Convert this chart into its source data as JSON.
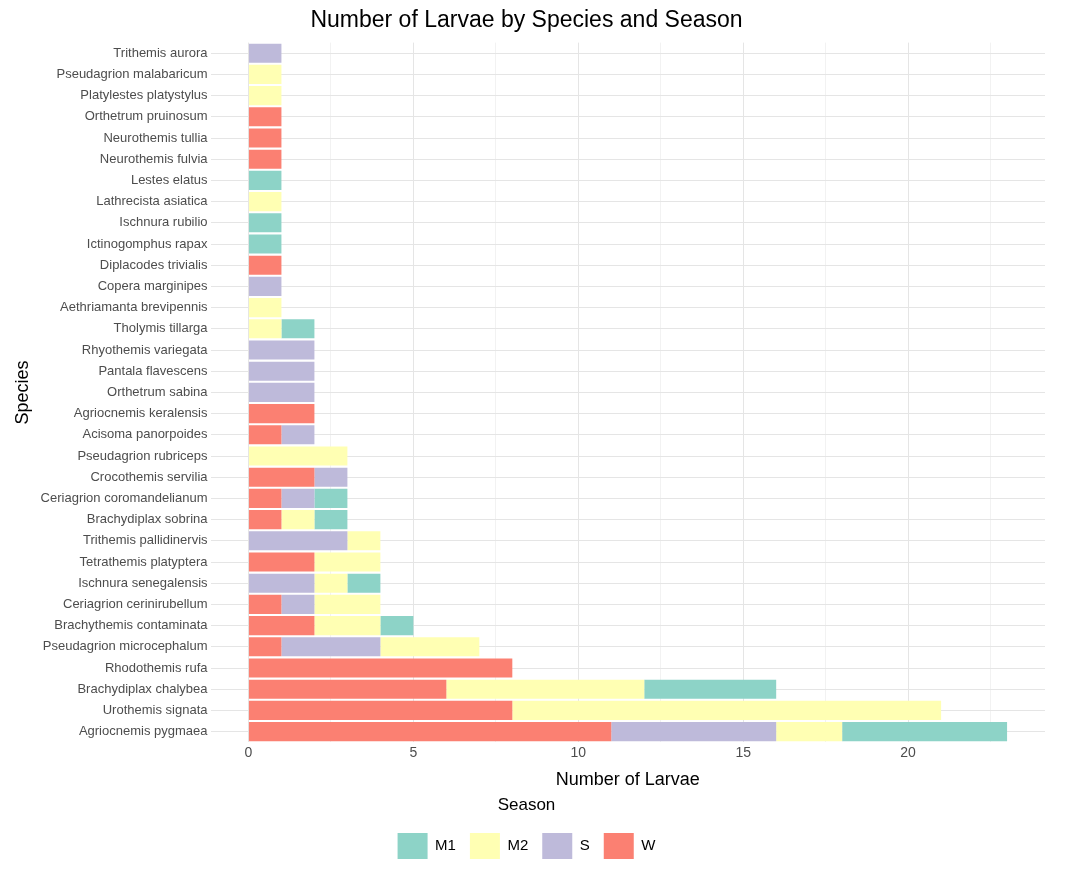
{
  "chart_data": {
    "type": "bar",
    "title": "Number of Larvae by Species and Season",
    "xlabel": "Number of Larvae",
    "ylabel": "Species",
    "legend_title": "Season",
    "orientation": "horizontal",
    "stacked": true,
    "grid": true,
    "legend": "bottom",
    "categories": [
      "Trithemis aurora",
      "Pseudagrion malabaricum",
      "Platylestes platystylus",
      "Orthetrum pruinosum",
      "Neurothemis tullia",
      "Neurothemis fulvia",
      "Lestes elatus",
      "Lathrecista asiatica",
      "Ischnura rubilio",
      "Ictinogomphus rapax",
      "Diplacodes trivialis",
      "Copera marginipes",
      "Aethriamanta brevipennis",
      "Tholymis tillarga",
      "Rhyothemis variegata",
      "Pantala flavescens",
      "Orthetrum sabina",
      "Agriocnemis keralensis",
      "Acisoma panorpoides",
      "Pseudagrion rubriceps",
      "Crocothemis servilia",
      "Ceriagrion coromandelianum",
      "Brachydiplax sobrina",
      "Trithemis pallidinervis",
      "Tetrathemis platyptera",
      "Ischnura senegalensis",
      "Ceriagrion cerinirubellum",
      "Brachythemis contaminata",
      "Pseudagrion microcephalum",
      "Rhodothemis rufa",
      "Brachydiplax chalybea",
      "Urothemis signata",
      "Agriocnemis pygmaea"
    ],
    "xlim": [
      -1.15,
      24.15
    ],
    "xticks": [
      0,
      {
        "value": 2.5,
        "label": null
      },
      5,
      {
        "value": 7.5,
        "label": null
      },
      10,
      {
        "value": 12.5,
        "label": null
      },
      15,
      {
        "value": 17.5,
        "label": null
      },
      20,
      {
        "value": 22.5,
        "label": null
      }
    ],
    "series": [
      {
        "name": "W",
        "color": "#fb8072",
        "values": [
          null,
          null,
          null,
          1,
          1,
          1,
          null,
          null,
          null,
          null,
          1,
          null,
          null,
          null,
          null,
          null,
          null,
          2,
          1,
          null,
          2,
          1,
          1,
          null,
          2,
          null,
          1,
          2,
          1,
          8,
          6,
          8,
          11
        ]
      },
      {
        "name": "S",
        "color": "#bebada",
        "values": [
          1,
          null,
          null,
          null,
          null,
          null,
          null,
          null,
          null,
          null,
          null,
          1,
          null,
          null,
          2,
          2,
          2,
          null,
          1,
          null,
          1,
          1,
          null,
          3,
          null,
          2,
          1,
          null,
          3,
          null,
          null,
          null,
          5
        ]
      },
      {
        "name": "M2",
        "color": "#ffffb3",
        "values": [
          null,
          1,
          1,
          null,
          null,
          null,
          null,
          1,
          null,
          null,
          null,
          null,
          1,
          1,
          null,
          null,
          null,
          null,
          null,
          3,
          null,
          null,
          1,
          1,
          2,
          1,
          2,
          2,
          3,
          null,
          6,
          13,
          2
        ]
      },
      {
        "name": "M1",
        "color": "#8dd3c7",
        "values": [
          null,
          null,
          null,
          null,
          null,
          null,
          1,
          null,
          1,
          1,
          null,
          null,
          null,
          1,
          null,
          null,
          null,
          null,
          null,
          null,
          null,
          1,
          1,
          null,
          null,
          1,
          null,
          1,
          null,
          null,
          4,
          null,
          5
        ]
      }
    ]
  }
}
